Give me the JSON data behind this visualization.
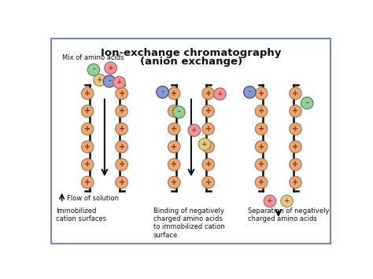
{
  "title_line1": "Ion-exchange chromatography",
  "title_line2": "(anion exchange)",
  "bg_color": "#ffffff",
  "border_color": "#7788aa",
  "pos_ion_color": "#e8a878",
  "pos_ion_edge": "#b07040",
  "green_aa_color": "#99cc99",
  "green_aa_edge": "#448844",
  "blue_aa_color": "#8899cc",
  "blue_aa_edge": "#334488",
  "pink_aa_color": "#e89898",
  "pink_aa_edge": "#bb5555",
  "yellow_aa_color": "#ddcc88",
  "yellow_aa_edge": "#998844",
  "panel1_label1": "Mix of amino acids",
  "panel1_label2": "Flow of solution",
  "panel1_label3": "Immobilized\ncation surfaces",
  "panel2_label": "Binding of negatively\ncharged amino acids\nto immobilized cation\nsurface",
  "panel3_label": "Separation of negatively\ncharged amino acids"
}
